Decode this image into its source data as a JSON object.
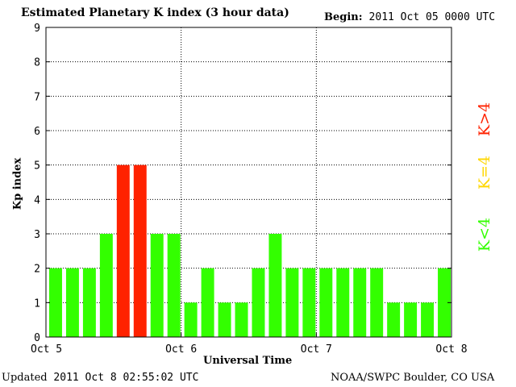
{
  "header": {
    "title": "Estimated Planetary K index (3 hour data)",
    "begin_label": "Begin:",
    "begin_value": "2011 Oct 05 0000 UTC"
  },
  "footer": {
    "updated_label": "Updated",
    "updated_value": "2011 Oct  8 02:55:02 UTC",
    "source": "NOAA/SWPC Boulder, CO USA"
  },
  "legend": {
    "high": "K>4",
    "equal": "K=4",
    "low": "K<4"
  },
  "colors": {
    "low": "#33ff00",
    "equal": "#ffd700",
    "high": "#ff2200"
  },
  "chart_data": {
    "type": "bar",
    "title": "Estimated Planetary K index (3 hour data)",
    "xlabel": "Universal Time",
    "ylabel": "Kp index",
    "ylim": [
      0,
      9
    ],
    "yticks": [
      0,
      1,
      2,
      3,
      4,
      5,
      6,
      7,
      8,
      9
    ],
    "xticks": [
      "Oct 5",
      "Oct 6",
      "Oct 7",
      "Oct 8"
    ],
    "grid": true,
    "interval_hours": 3,
    "values": [
      2,
      2,
      2,
      3,
      5,
      5,
      3,
      3,
      1,
      2,
      1,
      1,
      2,
      3,
      2,
      2,
      2,
      2,
      2,
      2,
      1,
      1,
      1,
      2
    ]
  }
}
